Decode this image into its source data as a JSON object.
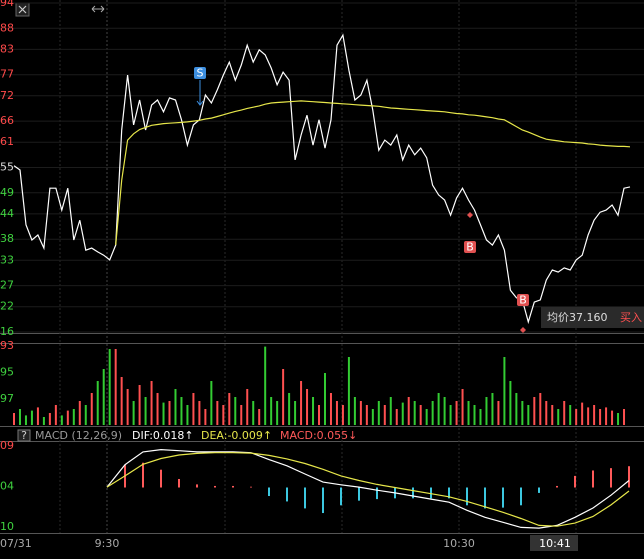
{
  "chart_data": [
    {
      "type": "line",
      "ylim": [
        16,
        94
      ],
      "yticks": [
        94,
        88,
        83,
        77,
        72,
        66,
        61,
        55,
        49,
        44,
        38,
        33,
        27,
        22,
        16
      ],
      "ytick_colors": [
        "#ff4a4a",
        "#ff4a4a",
        "#ff4a4a",
        "#ff4a4a",
        "#ff4a4a",
        "#ff4a4a",
        "#ff4a4a",
        "#dddddd",
        "#3fd13f",
        "#3fd13f",
        "#3fd13f",
        "#3fd13f",
        "#3fd13f",
        "#3fd13f",
        "#3fd13f"
      ],
      "x_labels": [
        "07/31",
        "9:30",
        "10:30",
        "10:41"
      ],
      "series": [
        {
          "color": "#ffffff",
          "values": [
            55.4,
            54.4,
            41.4,
            37.8,
            39.0,
            35.9,
            50.1,
            50.1,
            44.9,
            50.1,
            37.8,
            42.5,
            35.4,
            35.9,
            35.0,
            34.2,
            33.1,
            36.6,
            63.9,
            76.9,
            65.1,
            71.0,
            63.9,
            69.8,
            71.0,
            68.2,
            71.5,
            71.0,
            66.3,
            60.3,
            65.1,
            66.3,
            72.2,
            70.3,
            73.4,
            76.9,
            80.0,
            75.7,
            79.3,
            84.0,
            80.0,
            82.9,
            81.7,
            78.6,
            74.6,
            77.6,
            75.7,
            56.8,
            62.7,
            67.4,
            60.3,
            66.3,
            59.6,
            66.3,
            84.0,
            86.4,
            78.1,
            71.0,
            72.2,
            75.7,
            68.6,
            59.1,
            61.5,
            60.3,
            62.7,
            56.8,
            60.3,
            58.0,
            59.6,
            57.3,
            50.8,
            48.5,
            47.3,
            43.7,
            47.8,
            50.1,
            47.3,
            44.9,
            41.4,
            37.8,
            36.6,
            39.0,
            35.4,
            25.9,
            24.1,
            23.6,
            18.4,
            23.1,
            23.6,
            28.3,
            30.7,
            30.2,
            31.2,
            30.7,
            33.1,
            34.2,
            39.0,
            42.5,
            44.4,
            44.9,
            46.1,
            43.7,
            50.1,
            50.4
          ]
        },
        {
          "color": "#e6e64a",
          "values": [
            null,
            null,
            null,
            null,
            null,
            null,
            null,
            null,
            null,
            null,
            null,
            null,
            null,
            null,
            null,
            null,
            null,
            36.6,
            52.0,
            61.5,
            63.0,
            64.0,
            64.5,
            65.0,
            65.2,
            65.4,
            65.5,
            65.6,
            65.7,
            65.8,
            66.0,
            66.2,
            66.5,
            66.7,
            67.1,
            67.5,
            67.9,
            68.3,
            68.6,
            69.0,
            69.3,
            69.6,
            70.0,
            70.3,
            70.4,
            70.5,
            70.6,
            70.7,
            70.8,
            70.7,
            70.6,
            70.5,
            70.4,
            70.3,
            70.2,
            70.1,
            70.0,
            69.9,
            69.8,
            69.7,
            69.6,
            69.5,
            69.3,
            69.1,
            69.0,
            68.9,
            68.8,
            68.7,
            68.6,
            68.5,
            68.4,
            68.3,
            68.2,
            68.0,
            67.8,
            67.7,
            67.5,
            67.4,
            67.2,
            67.0,
            66.8,
            66.5,
            66.3,
            65.5,
            64.7,
            63.9,
            63.4,
            62.8,
            62.2,
            61.7,
            61.5,
            61.3,
            61.1,
            61.0,
            60.9,
            60.8,
            60.6,
            60.5,
            60.3,
            60.2,
            60.1,
            60.0,
            60.0,
            59.9
          ]
        }
      ],
      "markers": [
        {
          "label": "S",
          "color": "#3d8fe0"
        },
        {
          "label": "B",
          "color": "#e05050"
        },
        {
          "label": "B",
          "color": "#e05050"
        }
      ],
      "tooltip": {
        "label": "均价37.160",
        "action": "买入"
      }
    },
    {
      "type": "bar",
      "ylim": [
        0,
        100
      ],
      "axis_labels": [
        "93",
        "95",
        "97"
      ],
      "up_color": "#ff5050",
      "down_color": "#33cc33",
      "values": [
        15,
        20,
        12,
        18,
        22,
        10,
        15,
        25,
        12,
        18,
        20,
        30,
        25,
        40,
        55,
        70,
        95,
        95,
        60,
        45,
        30,
        50,
        35,
        55,
        40,
        28,
        30,
        45,
        35,
        25,
        40,
        30,
        20,
        55,
        30,
        25,
        40,
        35,
        25,
        45,
        30,
        20,
        98,
        35,
        30,
        70,
        40,
        30,
        55,
        45,
        35,
        25,
        65,
        40,
        30,
        25,
        85,
        35,
        30,
        25,
        20,
        30,
        25,
        35,
        20,
        28,
        35,
        30,
        25,
        20,
        30,
        40,
        35,
        25,
        30,
        45,
        30,
        25,
        20,
        35,
        40,
        30,
        85,
        55,
        40,
        30,
        25,
        35,
        40,
        30,
        25,
        20,
        30,
        25,
        20,
        28,
        22,
        25,
        20,
        22,
        18,
        15,
        20
      ]
    },
    {
      "type": "macd",
      "title": "MACD (12,26,9)",
      "ylim": [
        -0.115,
        0.115
      ],
      "axis_labels": [
        "09",
        "04",
        "10"
      ],
      "up_color": "#ff5a5a",
      "down_color": "#3cc8e0",
      "series": [
        {
          "name": "DIF:0.018↑",
          "color": "#ffffff",
          "values": [
            0.001,
            0.059,
            0.092,
            0.098,
            0.095,
            0.092,
            0.092,
            0.092,
            0.09,
            0.072,
            0.056,
            0.035,
            0.014,
            0.007,
            0.001,
            -0.007,
            -0.014,
            -0.022,
            -0.03,
            -0.038,
            -0.059,
            -0.077,
            -0.09,
            -0.103,
            -0.105,
            -0.098,
            -0.077,
            -0.053,
            -0.02,
            0.018
          ]
        },
        {
          "name": "DEA:-0.009↑",
          "color": "#e6e64a",
          "values": [
            0.001,
            0.03,
            0.06,
            0.075,
            0.084,
            0.088,
            0.09,
            0.09,
            0.089,
            0.083,
            0.074,
            0.062,
            0.047,
            0.03,
            0.018,
            0.008,
            0.0,
            -0.008,
            -0.016,
            -0.024,
            -0.036,
            -0.05,
            -0.064,
            -0.08,
            -0.098,
            -0.1,
            -0.092,
            -0.075,
            -0.045,
            -0.009
          ]
        },
        {
          "name": "MACD:0.055↓",
          "color": "#ff5a5a",
          "values": [
            0,
            0.058,
            0.064,
            0.046,
            0.022,
            0.008,
            0.004,
            0.004,
            0.002,
            -0.022,
            -0.036,
            -0.054,
            -0.066,
            -0.046,
            -0.034,
            -0.03,
            -0.028,
            -0.028,
            -0.028,
            -0.028,
            -0.046,
            -0.054,
            -0.052,
            -0.046,
            -0.014,
            0.004,
            0.03,
            0.044,
            0.05,
            0.055
          ]
        }
      ]
    }
  ]
}
